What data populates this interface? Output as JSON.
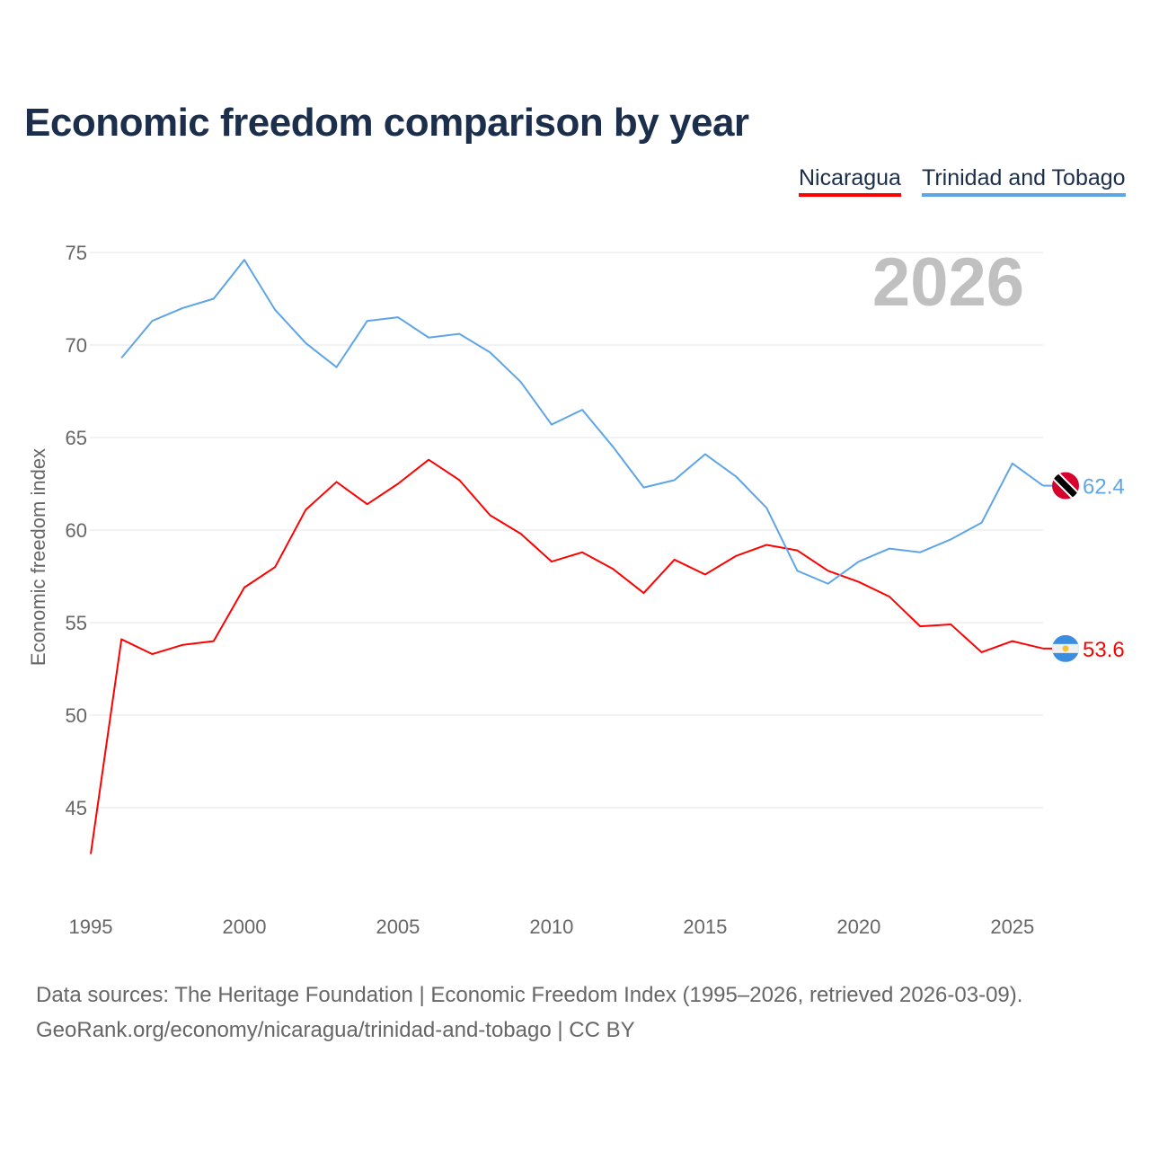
{
  "title": "Economic freedom comparison by year",
  "source_line1": "Data sources: The Heritage Foundation | Economic Freedom Index (1995–2026, retrieved 2026-03-09).",
  "source_line2": "GeoRank.org/economy/nicaragua/trinidad-and-tobago | CC BY",
  "chart_data": {
    "type": "line",
    "title": "Economic freedom comparison by year",
    "xlabel": "",
    "ylabel": "Economic freedom index",
    "year_label": "2026",
    "xlim": [
      1995,
      2026
    ],
    "ylim": [
      40,
      77
    ],
    "xticks": [
      1995,
      2000,
      2005,
      2010,
      2015,
      2020,
      2025
    ],
    "yticks": [
      45,
      50,
      55,
      60,
      65,
      70,
      75
    ],
    "grid": true,
    "legend": "top-right",
    "series": [
      {
        "name": "Nicaragua",
        "color": "#ff0000",
        "flag": "nicaragua-flag",
        "end_label": "53.6",
        "x": [
          1995,
          1996,
          1997,
          1998,
          1999,
          2000,
          2001,
          2002,
          2003,
          2004,
          2005,
          2006,
          2007,
          2008,
          2009,
          2010,
          2011,
          2012,
          2013,
          2014,
          2015,
          2016,
          2017,
          2018,
          2019,
          2020,
          2021,
          2022,
          2023,
          2024,
          2025,
          2026
        ],
        "values": [
          42.5,
          54.1,
          53.3,
          53.8,
          54.0,
          56.9,
          58.0,
          61.1,
          62.6,
          61.4,
          62.5,
          63.8,
          62.7,
          60.8,
          59.8,
          58.3,
          58.8,
          57.9,
          56.6,
          58.4,
          57.6,
          58.6,
          59.2,
          58.9,
          57.8,
          57.2,
          56.4,
          54.8,
          54.9,
          53.4,
          54.0,
          53.6
        ]
      },
      {
        "name": "Trinidad and Tobago",
        "color": "#5ea5e8",
        "flag": "trinidad-and-tobago-flag",
        "end_label": "62.4",
        "x": [
          1996,
          1997,
          1998,
          1999,
          2000,
          2001,
          2002,
          2003,
          2004,
          2005,
          2006,
          2007,
          2008,
          2009,
          2010,
          2011,
          2012,
          2013,
          2014,
          2015,
          2016,
          2017,
          2018,
          2019,
          2020,
          2021,
          2022,
          2023,
          2024,
          2025,
          2026
        ],
        "values": [
          69.3,
          71.3,
          72.0,
          72.5,
          74.6,
          71.9,
          70.1,
          68.8,
          71.3,
          71.5,
          70.4,
          70.6,
          69.6,
          68.0,
          65.7,
          66.5,
          64.5,
          62.3,
          62.7,
          64.1,
          62.9,
          61.2,
          57.8,
          57.1,
          58.3,
          59.0,
          58.8,
          59.5,
          60.4,
          63.6,
          62.4
        ]
      }
    ]
  }
}
